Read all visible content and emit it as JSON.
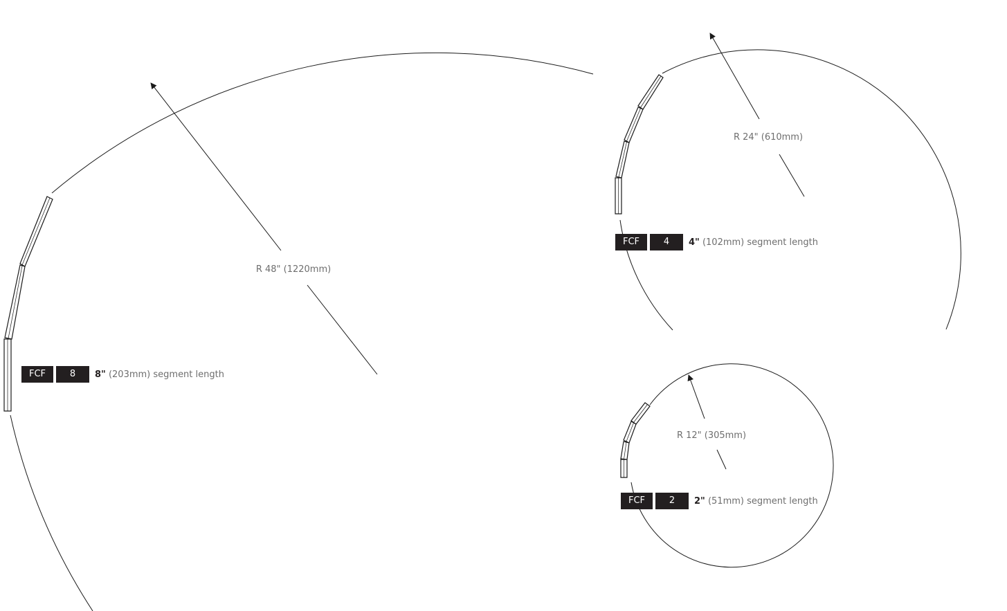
{
  "diagrams": [
    {
      "radius_label": "R 48\" (1220mm)",
      "series_code": "FCF",
      "segment_number": "8",
      "segment_length_bold": "8\"",
      "segment_length_text": " (203mm) segment length"
    },
    {
      "radius_label": "R 24\" (610mm)",
      "series_code": "FCF",
      "segment_number": "4",
      "segment_length_bold": "4\"",
      "segment_length_text": " (102mm) segment length"
    },
    {
      "radius_label": "R 12\" (305mm)",
      "series_code": "FCF",
      "segment_number": "2",
      "segment_length_bold": "2\"",
      "segment_length_text": " (51mm) segment length"
    }
  ],
  "colors": {
    "tag_background": "#231f20",
    "tag_text": "#ffffff",
    "label_gray": "#6e6e6e",
    "line": "#1a1a1a"
  }
}
